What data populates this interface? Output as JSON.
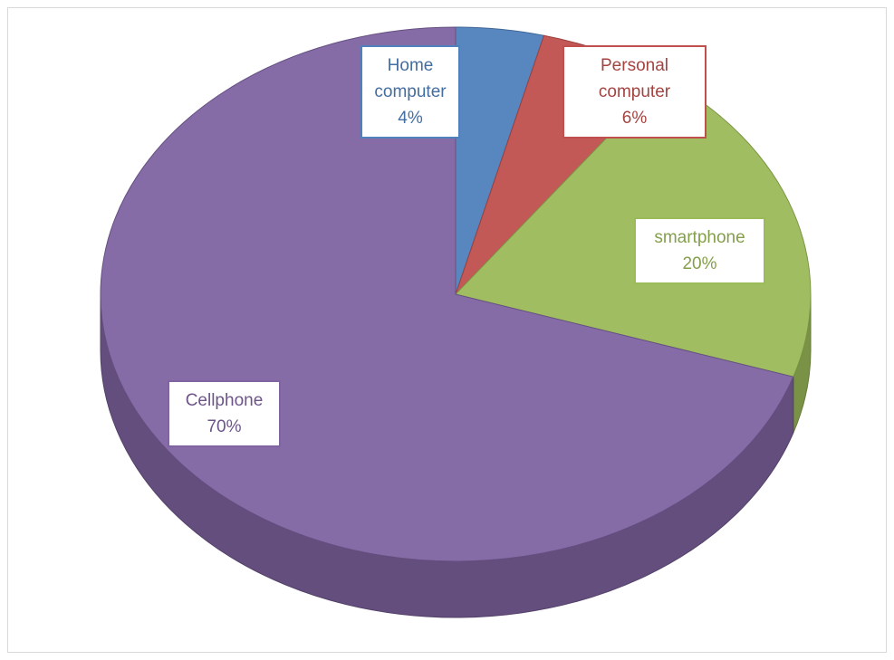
{
  "chart_data": {
    "type": "pie",
    "categories": [
      "Home computer",
      "Personal computer",
      "smartphone",
      "Cellphone"
    ],
    "values": [
      4,
      6,
      20,
      70
    ],
    "value_labels": [
      "4%",
      "6%",
      "20%",
      "70%"
    ],
    "colors": [
      "#4f81bd",
      "#c0504d",
      "#9bbb59",
      "#8064a2"
    ],
    "three_d": true
  }
}
